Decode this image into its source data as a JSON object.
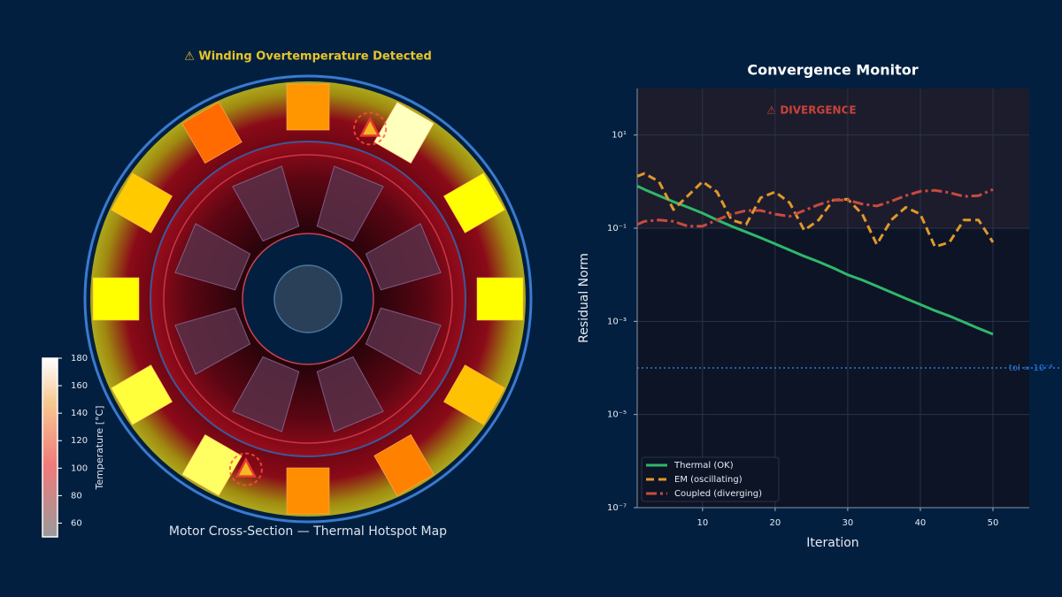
{
  "chart_data": [
    {
      "type": "motor-thermal",
      "title": "⚠ Winding Overtemperature Detected",
      "caption": "Motor Cross-Section — Thermal Hotspot Map",
      "colorbar_label": "Temperature [°C]",
      "clim": [
        50,
        180
      ],
      "cticks": [
        60,
        80,
        100,
        120,
        140,
        160,
        180
      ],
      "slots": [
        {
          "temperature": 130,
          "alarm": false
        },
        {
          "temperature": 175,
          "alarm": true
        },
        {
          "temperature": 158,
          "alarm": false
        },
        {
          "temperature": 160,
          "alarm": false
        },
        {
          "temperature": 140,
          "alarm": false
        },
        {
          "temperature": 125,
          "alarm": false
        },
        {
          "temperature": 128,
          "alarm": false
        },
        {
          "temperature": 168,
          "alarm": true
        },
        {
          "temperature": 165,
          "alarm": false
        },
        {
          "temperature": 158,
          "alarm": false
        },
        {
          "temperature": 142,
          "alarm": false
        },
        {
          "temperature": 120,
          "alarm": false
        }
      ]
    },
    {
      "type": "line",
      "title": "Convergence Monitor",
      "x_label": "Iteration",
      "y_label": "Residual Norm",
      "log_y": true,
      "grid": true,
      "legend": "lower left",
      "xlim": [
        1,
        55
      ],
      "xticks": [
        10,
        20,
        30,
        40,
        50
      ],
      "ylim": [
        1e-07,
        100
      ],
      "yticks": [
        {
          "value": 1e-07,
          "label": "10⁻⁷"
        },
        {
          "value": 1e-05,
          "label": "10⁻⁵"
        },
        {
          "value": 0.001,
          "label": "10⁻³"
        },
        {
          "value": 0.1,
          "label": "10⁻¹"
        },
        {
          "value": 10,
          "label": "10¹"
        }
      ],
      "divergence_threshold": 0.1,
      "divergence_label": "⚠ DIVERGENCE",
      "tolerance": 0.0001,
      "tolerance_label": "tol = 10⁻⁴",
      "x": [
        1,
        2,
        4,
        6,
        8,
        10,
        12,
        14,
        16,
        18,
        20,
        22,
        24,
        26,
        28,
        30,
        32,
        34,
        36,
        38,
        40,
        42,
        44,
        46,
        48,
        50
      ],
      "series": [
        {
          "name": "Thermal (OK)",
          "color": "#2fb86a",
          "dash": "none",
          "values": [
            0.8,
            0.68,
            0.5,
            0.37,
            0.28,
            0.21,
            0.15,
            0.11,
            0.083,
            0.062,
            0.046,
            0.034,
            0.025,
            0.019,
            0.014,
            0.01,
            0.0077,
            0.0057,
            0.0042,
            0.0031,
            0.0023,
            0.0017,
            0.0013,
            0.00096,
            0.00071,
            0.00053
          ]
        },
        {
          "name": "EM (oscillating)",
          "color": "#e0982a",
          "dash": "9 5",
          "values": [
            1.3,
            1.5,
            1.0,
            0.25,
            0.5,
            1.0,
            0.6,
            0.15,
            0.12,
            0.45,
            0.6,
            0.35,
            0.09,
            0.15,
            0.4,
            0.42,
            0.2,
            0.045,
            0.15,
            0.28,
            0.2,
            0.04,
            0.05,
            0.15,
            0.15,
            0.05
          ]
        },
        {
          "name": "Coupled (diverging)",
          "color": "#c94a3f",
          "dash": "12 4 3 4",
          "values": [
            0.12,
            0.14,
            0.15,
            0.14,
            0.11,
            0.11,
            0.15,
            0.2,
            0.24,
            0.24,
            0.2,
            0.18,
            0.24,
            0.32,
            0.4,
            0.4,
            0.33,
            0.3,
            0.38,
            0.5,
            0.62,
            0.65,
            0.58,
            0.48,
            0.5,
            0.68
          ]
        }
      ]
    }
  ]
}
